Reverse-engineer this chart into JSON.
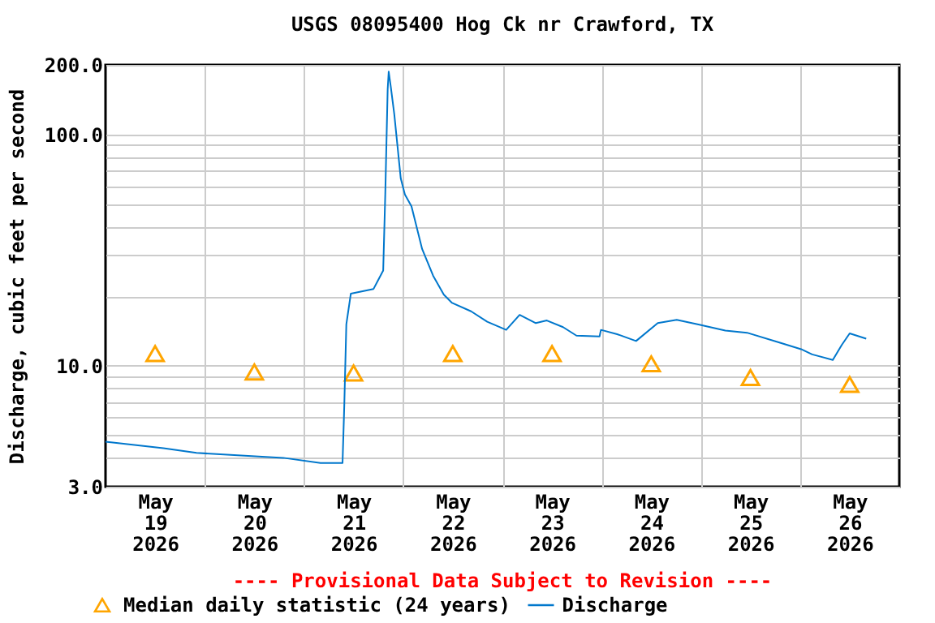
{
  "chart_data": {
    "type": "line",
    "title": "USGS 08095400 Hog Ck nr Crawford, TX",
    "ylabel": "Discharge, cubic feet per second",
    "annotations": [
      "---- Provisional Data Subject to Revision ----"
    ],
    "log": "y",
    "grid": true,
    "legend": "bottom",
    "xlim": [
      "2026-05-19T00:00",
      "2026-05-27T00:00"
    ],
    "xticks": [
      {
        "value": "2026-05-19T12:00",
        "label": "May 19 2026"
      },
      {
        "value": "2026-05-20T00:00",
        "label": null
      },
      {
        "value": "2026-05-20T12:00",
        "label": "May 20 2026"
      },
      {
        "value": "2026-05-21T00:00",
        "label": null
      },
      {
        "value": "2026-05-21T12:00",
        "label": "May 21 2026"
      },
      {
        "value": "2026-05-22T00:00",
        "label": null
      },
      {
        "value": "2026-05-22T12:00",
        "label": "May 22 2026"
      },
      {
        "value": "2026-05-23T00:00",
        "label": null
      },
      {
        "value": "2026-05-23T12:00",
        "label": "May 23 2026"
      },
      {
        "value": "2026-05-24T00:00",
        "label": null
      },
      {
        "value": "2026-05-24T12:00",
        "label": "May 24 2026"
      },
      {
        "value": "2026-05-25T00:00",
        "label": null
      },
      {
        "value": "2026-05-25T12:00",
        "label": "May 25 2026"
      },
      {
        "value": "2026-05-26T00:00",
        "label": null
      },
      {
        "value": "2026-05-26T12:00",
        "label": "May 26 2026"
      }
    ],
    "ylim": [
      3,
      200
    ],
    "yticks": [
      {
        "value": 3,
        "label": "3.0"
      },
      {
        "value": 4,
        "label": null
      },
      {
        "value": 5,
        "label": null
      },
      {
        "value": 6,
        "label": null
      },
      {
        "value": 7,
        "label": null
      },
      {
        "value": 8,
        "label": null
      },
      {
        "value": 9,
        "label": null
      },
      {
        "value": 10,
        "label": "10.0"
      },
      {
        "value": 20,
        "label": null
      },
      {
        "value": 30,
        "label": null
      },
      {
        "value": 40,
        "label": null
      },
      {
        "value": 50,
        "label": null
      },
      {
        "value": 60,
        "label": null
      },
      {
        "value": 70,
        "label": null
      },
      {
        "value": 80,
        "label": null
      },
      {
        "value": 90,
        "label": null
      },
      {
        "value": 100,
        "label": "100.0"
      },
      {
        "value": 200,
        "label": "200.0"
      }
    ],
    "series": [
      {
        "name": "Median daily statistic (24 years)",
        "type": "scatter",
        "marker": "triangle",
        "color": "#ffa500",
        "x": [
          "2026-05-19T12:00",
          "2026-05-20T12:00",
          "2026-05-21T12:00",
          "2026-05-22T12:00",
          "2026-05-23T12:00",
          "2026-05-24T12:00",
          "2026-05-25T12:00",
          "2026-05-26T12:00"
        ],
        "values": [
          11.3,
          9.4,
          9.3,
          11.3,
          11.3,
          10.2,
          8.9,
          8.3
        ]
      },
      {
        "name": "Discharge",
        "color": "#0077cc",
        "line_style": "solid",
        "x": [
          "2026-05-19T00:00",
          "2026-05-19T14:00",
          "2026-05-19T22:00",
          "2026-05-20T19:00",
          "2026-05-21T04:00",
          "2026-05-21T09:20",
          "2026-05-21T09:45",
          "2026-05-21T10:15",
          "2026-05-21T11:20",
          "2026-05-21T16:50",
          "2026-05-21T18:05",
          "2026-05-21T19:10",
          "2026-05-21T19:40",
          "2026-05-21T20:15",
          "2026-05-21T20:30",
          "2026-05-21T21:00",
          "2026-05-21T21:50",
          "2026-05-21T23:25",
          "2026-05-22T00:25",
          "2026-05-22T02:00",
          "2026-05-22T04:35",
          "2026-05-22T07:15",
          "2026-05-22T09:50",
          "2026-05-22T11:50",
          "2026-05-22T16:25",
          "2026-05-22T20:20",
          "2026-05-23T00:55",
          "2026-05-23T04:10",
          "2026-05-23T08:05",
          "2026-05-23T10:45",
          "2026-05-23T14:40",
          "2026-05-23T17:55",
          "2026-05-23T23:30",
          "2026-05-23T23:50",
          "2026-05-24T03:45",
          "2026-05-24T08:20",
          "2026-05-24T13:35",
          "2026-05-24T18:10",
          "2026-05-24T23:25",
          "2026-05-25T05:55",
          "2026-05-25T11:10",
          "2026-05-25T19:00",
          "2026-05-26T00:15",
          "2026-05-26T02:55",
          "2026-05-26T07:55",
          "2026-05-26T10:05",
          "2026-05-26T12:00",
          "2026-05-26T16:00"
        ],
        "values": [
          4.7,
          4.4,
          4.2,
          4.0,
          3.8,
          3.8,
          6.7,
          15.1,
          20.5,
          21.5,
          23.7,
          25.8,
          55,
          157,
          187,
          161,
          123,
          64.5,
          55,
          49,
          32,
          24.5,
          20.3,
          18.7,
          17.2,
          15.5,
          14.3,
          16.6,
          15.3,
          15.7,
          14.7,
          13.5,
          13.4,
          14.3,
          13.7,
          12.8,
          15.3,
          15.8,
          15.1,
          14.2,
          13.9,
          12.6,
          11.8,
          11.2,
          10.6,
          12.3,
          13.8,
          13.1
        ]
      }
    ]
  }
}
